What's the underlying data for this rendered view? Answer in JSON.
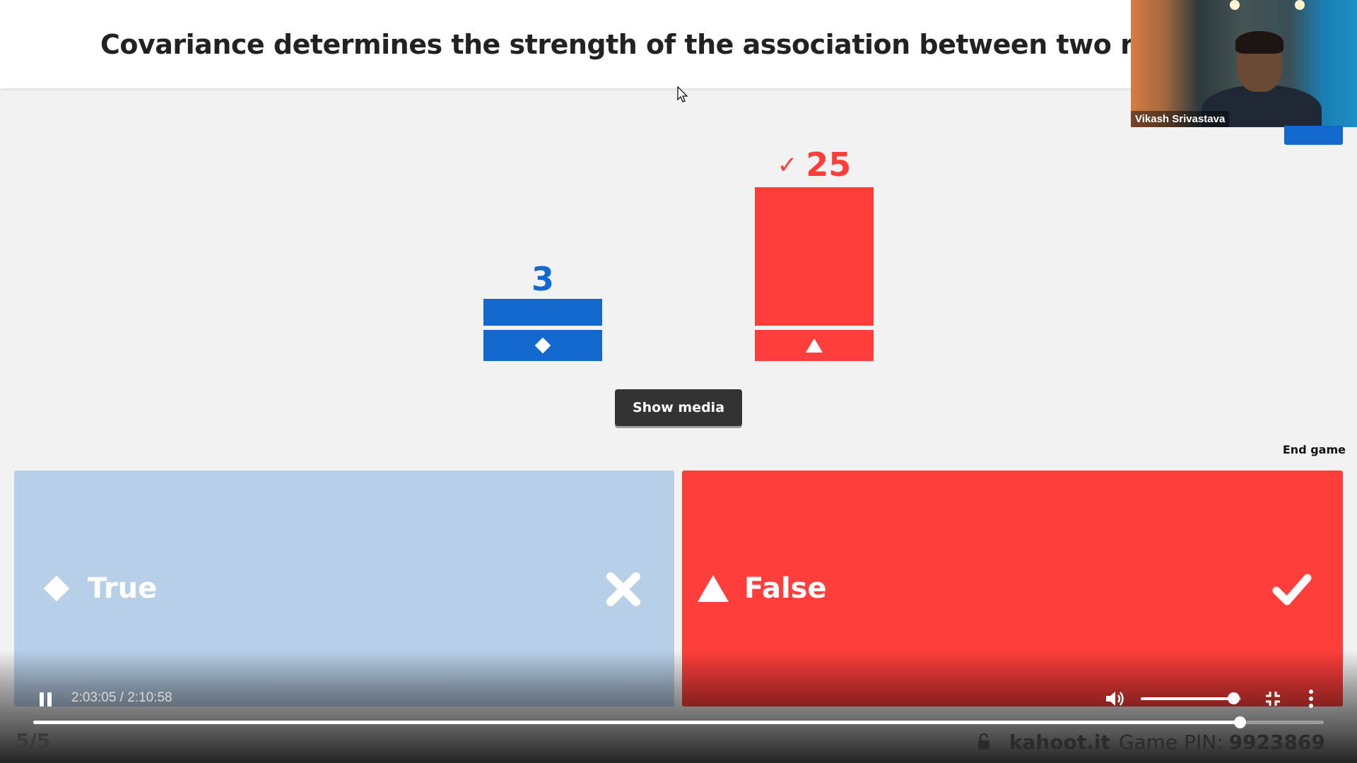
{
  "question": {
    "text": "Covariance determines the strength of the association between two random"
  },
  "webcam": {
    "participant_name": "Vikash Srivastava"
  },
  "results": {
    "bars": [
      {
        "label": "True",
        "count": "3",
        "shape": "diamond-icon",
        "color": "#1368ce",
        "correct": false
      },
      {
        "label": "False",
        "count": "25",
        "shape": "triangle-icon",
        "color": "#ff3e3b",
        "correct": true
      }
    ],
    "correct_mark": "✓"
  },
  "buttons": {
    "show_media": "Show media",
    "end_game": "End game"
  },
  "answers": [
    {
      "label": "True",
      "shape": "diamond-icon",
      "color": "#b8cfe8",
      "result": "cross-icon",
      "correct": false
    },
    {
      "label": "False",
      "shape": "triangle-icon",
      "color": "#ff3e3b",
      "result": "check-icon",
      "correct": true
    }
  ],
  "video": {
    "state": "paused",
    "time": "2:03:05 / 2:10:58",
    "progress": 0.935,
    "volume": 0.92
  },
  "footer": {
    "question_progress": "5/5",
    "brand": "kahoot.it",
    "pin_label": "Game PIN:",
    "pin": "9923869"
  }
}
